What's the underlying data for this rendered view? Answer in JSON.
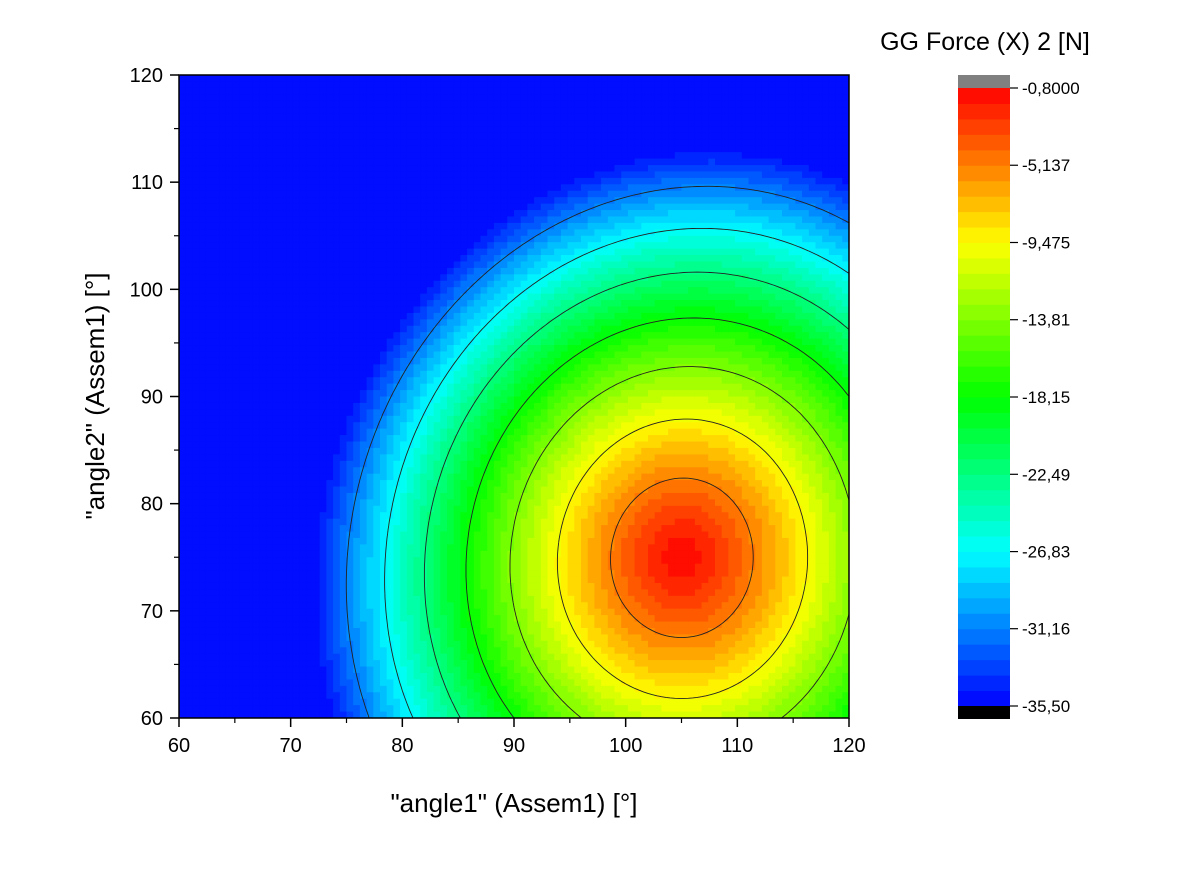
{
  "chart_data": {
    "type": "heatmap",
    "subtype": "filled-contour",
    "xlabel": "\"angle1\" (Assem1) [°]",
    "ylabel": "\"angle2\" (Assem1) [°]",
    "xlim": [
      60,
      120
    ],
    "ylim": [
      60,
      120
    ],
    "x_ticks": [
      "60",
      "70",
      "80",
      "90",
      "100",
      "110",
      "120"
    ],
    "y_ticks": [
      "60",
      "70",
      "80",
      "90",
      "100",
      "110",
      "120"
    ],
    "x_tick_values": [
      60,
      70,
      80,
      90,
      100,
      110,
      120
    ],
    "y_tick_values": [
      60,
      70,
      80,
      90,
      100,
      110,
      120
    ],
    "colorbar": {
      "title": "GG Force (X) 2 [N]",
      "range": [
        -35.5,
        -0.8
      ],
      "labels": [
        "-0,8000",
        "-5,137",
        "-9,475",
        "-13,81",
        "-18,15",
        "-22,49",
        "-26,83",
        "-31,16",
        "-35,50"
      ],
      "label_values": [
        -0.8,
        -5.137,
        -9.475,
        -13.81,
        -18.15,
        -22.49,
        -26.83,
        -31.16,
        -35.5
      ],
      "above_color": "#808080",
      "below_color": "#000000",
      "colormap": [
        "#0000ff",
        "#00ffff",
        "#00ff00",
        "#ffff00",
        "#ff0000"
      ]
    },
    "peak": {
      "x": 105,
      "y": 75,
      "value": -0.9
    },
    "grid": false,
    "contour_lines": true
  }
}
